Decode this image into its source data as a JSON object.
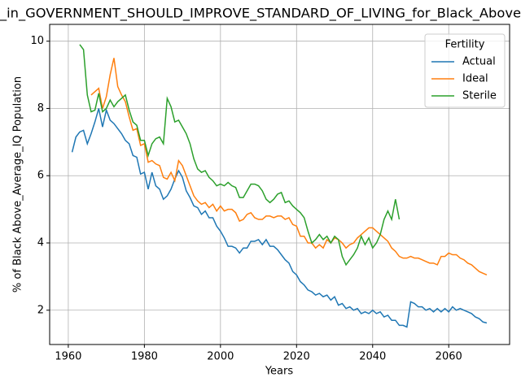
{
  "chart_data": {
    "type": "line",
    "title": "_in_GOVERNMENT_SHOULD_IMPROVE_STANDARD_OF_LIVING_for_Black_Above",
    "xlabel": "Years",
    "ylabel": "% of Black Above_Average_IQ Population",
    "legend_title": "Fertility",
    "legend": "upper right",
    "grid": true,
    "xlim": [
      1955.1,
      2076
    ],
    "xticks": [
      1960,
      1980,
      2000,
      2020,
      2040,
      2060
    ],
    "ylim": [
      0.98,
      10.5
    ],
    "yticks": [
      2,
      4,
      6,
      8,
      10
    ],
    "x": [
      1961,
      1962,
      1963,
      1964,
      1965,
      1966,
      1967,
      1968,
      1969,
      1970,
      1971,
      1972,
      1973,
      1974,
      1975,
      1976,
      1977,
      1978,
      1979,
      1980,
      1981,
      1982,
      1983,
      1984,
      1985,
      1986,
      1987,
      1988,
      1989,
      1990,
      1991,
      1992,
      1993,
      1994,
      1995,
      1996,
      1997,
      1998,
      1999,
      2000,
      2001,
      2002,
      2003,
      2004,
      2005,
      2006,
      2007,
      2008,
      2009,
      2010,
      2011,
      2012,
      2013,
      2014,
      2015,
      2016,
      2017,
      2018,
      2019,
      2020,
      2021,
      2022,
      2023,
      2024,
      2025,
      2026,
      2027,
      2028,
      2029,
      2030,
      2031,
      2032,
      2033,
      2034,
      2035,
      2036,
      2037,
      2038,
      2039,
      2040,
      2041,
      2042,
      2043,
      2044,
      2045,
      2046,
      2047,
      2048,
      2049,
      2050,
      2051,
      2052,
      2053,
      2054,
      2055,
      2056,
      2057,
      2058,
      2059,
      2060,
      2061,
      2062,
      2063,
      2064,
      2065,
      2066,
      2067,
      2068,
      2069,
      2070
    ],
    "series": [
      {
        "name": "Actual",
        "color": "#1f77b4",
        "values": [
          6.7,
          7.15,
          7.3,
          7.35,
          6.95,
          7.25,
          7.6,
          8.0,
          7.45,
          7.95,
          7.65,
          7.55,
          7.4,
          7.25,
          7.05,
          6.95,
          6.6,
          6.55,
          6.05,
          6.1,
          5.6,
          6.1,
          5.7,
          5.6,
          5.3,
          5.4,
          5.6,
          5.9,
          6.15,
          5.95,
          5.55,
          5.35,
          5.1,
          5.05,
          4.85,
          4.95,
          4.75,
          4.75,
          4.5,
          4.35,
          4.15,
          3.9,
          3.9,
          3.85,
          3.7,
          3.85,
          3.85,
          4.05,
          4.05,
          4.1,
          3.95,
          4.1,
          3.9,
          3.9,
          3.8,
          3.65,
          3.5,
          3.4,
          3.15,
          3.05,
          2.85,
          2.75,
          2.6,
          2.55,
          2.45,
          2.5,
          2.4,
          2.45,
          2.3,
          2.4,
          2.15,
          2.2,
          2.05,
          2.1,
          2.0,
          2.05,
          1.9,
          1.95,
          1.9,
          2.0,
          1.9,
          1.95,
          1.8,
          1.85,
          1.7,
          1.7,
          1.55,
          1.55,
          1.5,
          2.25,
          2.2,
          2.1,
          2.1,
          2.0,
          2.05,
          1.95,
          2.05,
          1.95,
          2.05,
          1.95,
          2.1,
          2.0,
          2.05,
          2.0,
          1.95,
          1.9,
          1.8,
          1.75,
          1.65,
          1.62
        ]
      },
      {
        "name": "Ideal",
        "color": "#ff7f0e",
        "values": [
          null,
          null,
          null,
          null,
          null,
          8.4,
          8.5,
          8.6,
          8.0,
          8.35,
          9.0,
          9.5,
          8.65,
          8.4,
          8.2,
          7.75,
          7.35,
          7.4,
          6.9,
          6.95,
          6.4,
          6.45,
          6.35,
          6.3,
          5.95,
          5.9,
          6.1,
          5.85,
          6.45,
          6.3,
          6.0,
          5.7,
          5.4,
          5.25,
          5.15,
          5.2,
          5.05,
          5.15,
          4.95,
          5.1,
          4.95,
          5.0,
          5.0,
          4.9,
          4.65,
          4.7,
          4.85,
          4.9,
          4.75,
          4.7,
          4.7,
          4.8,
          4.8,
          4.75,
          4.8,
          4.8,
          4.7,
          4.75,
          4.55,
          4.5,
          4.2,
          4.2,
          4.0,
          4.0,
          3.85,
          3.95,
          3.85,
          4.1,
          4.0,
          4.15,
          4.1,
          4.0,
          3.85,
          3.95,
          4.0,
          4.15,
          4.25,
          4.35,
          4.45,
          4.45,
          4.35,
          4.25,
          4.15,
          4.05,
          3.85,
          3.75,
          3.6,
          3.55,
          3.55,
          3.6,
          3.55,
          3.55,
          3.5,
          3.45,
          3.4,
          3.4,
          3.35,
          3.6,
          3.6,
          3.7,
          3.65,
          3.65,
          3.55,
          3.5,
          3.4,
          3.35,
          3.25,
          3.15,
          3.1,
          3.05
        ]
      },
      {
        "name": "Sterile",
        "color": "#2ca02c",
        "values": [
          null,
          null,
          9.9,
          9.75,
          8.4,
          7.9,
          7.95,
          8.45,
          7.9,
          8.0,
          8.25,
          8.05,
          8.2,
          8.3,
          8.4,
          7.95,
          7.6,
          7.5,
          7.05,
          7.05,
          6.6,
          6.95,
          7.1,
          7.15,
          6.95,
          8.3,
          8.05,
          7.6,
          7.65,
          7.45,
          7.25,
          6.95,
          6.5,
          6.2,
          6.1,
          6.15,
          5.95,
          5.85,
          5.7,
          5.75,
          5.7,
          5.8,
          5.7,
          5.65,
          5.35,
          5.35,
          5.55,
          5.75,
          5.75,
          5.7,
          5.55,
          5.3,
          5.2,
          5.3,
          5.45,
          5.5,
          5.2,
          5.25,
          5.1,
          5.0,
          4.9,
          4.75,
          4.35,
          4.0,
          4.1,
          4.25,
          4.1,
          4.2,
          4.0,
          4.2,
          4.1,
          3.6,
          3.35,
          3.5,
          3.65,
          3.85,
          4.2,
          3.95,
          4.15,
          3.85,
          4.0,
          4.25,
          4.7,
          4.95,
          4.7,
          5.3,
          4.7,
          null,
          null,
          null,
          null,
          null,
          null,
          null,
          null,
          null,
          null,
          null,
          null,
          null,
          null,
          null,
          null,
          null,
          null,
          null,
          null,
          null,
          null,
          null
        ]
      }
    ]
  }
}
